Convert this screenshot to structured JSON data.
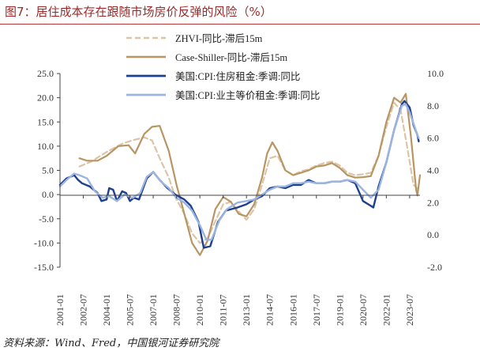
{
  "figure": {
    "title": "图7：居住成本存在跟随市场房价反弹的风险（%）",
    "source": "资料来源：Wind、Fred，中国银河证券研究院"
  },
  "colors": {
    "title": "#9a2a2a",
    "zhvi": "#dcc4a6",
    "case_shiller": "#b89663",
    "cpi_shelter": "#1d3f8f",
    "cpi_oer": "#9bb4e0"
  },
  "chart_data": {
    "type": "line",
    "title": "",
    "xlabel": "",
    "ylabel": "",
    "xlim": [
      "2001-01",
      "2024-03"
    ],
    "x_tick_labels": [
      "2001-01",
      "2002-07",
      "2004-01",
      "2005-07",
      "2007-01",
      "2008-07",
      "2010-01",
      "2011-07",
      "2013-01",
      "2014-07",
      "2016-01",
      "2017-07",
      "2019-01",
      "2020-07",
      "2022-01",
      "2023-07"
    ],
    "y_left": {
      "lim": [
        -15,
        25
      ],
      "ticks": [
        "25.0",
        "20.0",
        "15.0",
        "10.0",
        "5.0",
        "0.0",
        "-5.0",
        "-10.0",
        "-15.0"
      ]
    },
    "y_right": {
      "lim": [
        -2,
        10
      ],
      "ticks": [
        "10.0",
        "8.0",
        "6.0",
        "4.0",
        "2.0",
        "0.0",
        "-2.0"
      ]
    },
    "grid": false,
    "legend": "top-center",
    "series": [
      {
        "name": "ZHVI-同比-滞后15m",
        "axis": "left",
        "style": "dashed",
        "points": [
          [
            "2002-04",
            5.8
          ],
          [
            "2003-01",
            6.8
          ],
          [
            "2004-01",
            8.8
          ],
          [
            "2005-01",
            10.5
          ],
          [
            "2005-09",
            11.2
          ],
          [
            "2006-06",
            11.8
          ],
          [
            "2006-12",
            11.2
          ],
          [
            "2007-06",
            7.5
          ],
          [
            "2008-01",
            3.5
          ],
          [
            "2008-06",
            -0.5
          ],
          [
            "2009-01",
            -4.0
          ],
          [
            "2009-07",
            -8.0
          ],
          [
            "2010-01",
            -10.0
          ],
          [
            "2010-07",
            -9.0
          ],
          [
            "2011-01",
            -5.5
          ],
          [
            "2011-07",
            -2.0
          ],
          [
            "2012-01",
            -1.5
          ],
          [
            "2012-07",
            -3.5
          ],
          [
            "2013-01",
            -5.2
          ],
          [
            "2013-07",
            -3.0
          ],
          [
            "2014-01",
            2.0
          ],
          [
            "2014-07",
            7.5
          ],
          [
            "2015-01",
            8.0
          ],
          [
            "2015-07",
            5.0
          ],
          [
            "2016-01",
            4.0
          ],
          [
            "2016-07",
            4.8
          ],
          [
            "2017-01",
            5.2
          ],
          [
            "2017-07",
            6.0
          ],
          [
            "2018-01",
            6.5
          ],
          [
            "2018-07",
            6.8
          ],
          [
            "2019-01",
            6.0
          ],
          [
            "2019-07",
            4.5
          ],
          [
            "2020-01",
            4.0
          ],
          [
            "2020-07",
            4.2
          ],
          [
            "2021-01",
            4.5
          ],
          [
            "2021-07",
            8.0
          ],
          [
            "2022-01",
            14.0
          ],
          [
            "2022-07",
            19.0
          ],
          [
            "2022-12",
            17.5
          ],
          [
            "2023-05",
            10.0
          ],
          [
            "2023-10",
            2.0
          ],
          [
            "2024-02",
            1.0
          ]
        ]
      },
      {
        "name": "Case-Shiller-同比-滞后15m",
        "axis": "left",
        "style": "solid",
        "points": [
          [
            "2002-04",
            7.5
          ],
          [
            "2002-10",
            7.0
          ],
          [
            "2003-06",
            7.0
          ],
          [
            "2004-01",
            8.0
          ],
          [
            "2004-10",
            10.0
          ],
          [
            "2005-06",
            10.2
          ],
          [
            "2005-11",
            8.5
          ],
          [
            "2006-06",
            12.5
          ],
          [
            "2006-12",
            14.0
          ],
          [
            "2007-06",
            14.2
          ],
          [
            "2008-01",
            9.0
          ],
          [
            "2008-07",
            2.0
          ],
          [
            "2009-01",
            -4.0
          ],
          [
            "2009-07",
            -10.0
          ],
          [
            "2010-01",
            -12.5
          ],
          [
            "2010-07",
            -9.5
          ],
          [
            "2011-01",
            -3.0
          ],
          [
            "2011-07",
            -0.5
          ],
          [
            "2012-01",
            -1.5
          ],
          [
            "2012-07",
            -4.0
          ],
          [
            "2013-01",
            -4.5
          ],
          [
            "2013-07",
            -2.0
          ],
          [
            "2014-01",
            3.5
          ],
          [
            "2014-05",
            8.5
          ],
          [
            "2014-09",
            10.8
          ],
          [
            "2015-01",
            9.0
          ],
          [
            "2015-07",
            5.0
          ],
          [
            "2016-01",
            4.0
          ],
          [
            "2016-07",
            4.5
          ],
          [
            "2017-01",
            5.0
          ],
          [
            "2017-07",
            5.8
          ],
          [
            "2018-01",
            6.0
          ],
          [
            "2018-07",
            6.5
          ],
          [
            "2019-01",
            5.5
          ],
          [
            "2019-07",
            4.0
          ],
          [
            "2020-01",
            3.5
          ],
          [
            "2020-07",
            3.6
          ],
          [
            "2021-01",
            3.8
          ],
          [
            "2021-07",
            8.0
          ],
          [
            "2022-01",
            15.0
          ],
          [
            "2022-07",
            20.0
          ],
          [
            "2022-12",
            19.0
          ],
          [
            "2023-04",
            20.8
          ],
          [
            "2023-08",
            12.0
          ],
          [
            "2023-12",
            1.0
          ],
          [
            "2024-01",
            -0.2
          ],
          [
            "2024-03",
            4.0
          ]
        ]
      },
      {
        "name": "美国:CPI:住房租金:季调:同比",
        "axis": "right",
        "style": "solid",
        "points": [
          [
            "2001-01",
            3.1
          ],
          [
            "2001-06",
            3.5
          ],
          [
            "2001-12",
            3.7
          ],
          [
            "2002-03",
            3.4
          ],
          [
            "2002-06",
            3.2
          ],
          [
            "2002-12",
            3.0
          ],
          [
            "2003-06",
            2.6
          ],
          [
            "2003-09",
            2.1
          ],
          [
            "2004-01",
            2.2
          ],
          [
            "2004-03",
            2.9
          ],
          [
            "2004-06",
            2.8
          ],
          [
            "2004-09",
            2.1
          ],
          [
            "2005-01",
            2.7
          ],
          [
            "2005-04",
            2.6
          ],
          [
            "2005-07",
            2.1
          ],
          [
            "2005-10",
            2.3
          ],
          [
            "2006-02",
            2.2
          ],
          [
            "2006-08",
            3.5
          ],
          [
            "2007-01",
            3.9
          ],
          [
            "2007-06",
            3.4
          ],
          [
            "2007-12",
            2.9
          ],
          [
            "2008-06",
            2.5
          ],
          [
            "2009-01",
            2.2
          ],
          [
            "2009-06",
            1.8
          ],
          [
            "2009-12",
            0.8
          ],
          [
            "2010-04",
            -0.8
          ],
          [
            "2010-09",
            -0.7
          ],
          [
            "2011-03",
            0.8
          ],
          [
            "2011-09",
            1.5
          ],
          [
            "2012-06",
            1.7
          ],
          [
            "2013-01",
            1.9
          ],
          [
            "2013-07",
            2.2
          ],
          [
            "2014-01",
            2.4
          ],
          [
            "2014-07",
            2.9
          ],
          [
            "2015-01",
            3.0
          ],
          [
            "2015-07",
            2.9
          ],
          [
            "2016-01",
            3.1
          ],
          [
            "2016-07",
            3.1
          ],
          [
            "2017-01",
            3.4
          ],
          [
            "2017-07",
            3.2
          ],
          [
            "2018-01",
            3.2
          ],
          [
            "2018-07",
            3.3
          ],
          [
            "2019-01",
            3.3
          ],
          [
            "2019-07",
            3.4
          ],
          [
            "2020-01",
            3.2
          ],
          [
            "2020-07",
            2.1
          ],
          [
            "2021-01",
            1.8
          ],
          [
            "2021-03",
            1.7
          ],
          [
            "2021-07",
            3.0
          ],
          [
            "2022-01",
            4.5
          ],
          [
            "2022-07",
            6.5
          ],
          [
            "2023-01",
            8.1
          ],
          [
            "2023-03",
            8.3
          ],
          [
            "2023-07",
            7.9
          ],
          [
            "2023-10",
            6.8
          ],
          [
            "2024-01",
            6.2
          ],
          [
            "2024-02",
            5.8
          ]
        ]
      },
      {
        "name": "美国:CPI:业主等价租金:季调:同比",
        "axis": "right",
        "style": "solid",
        "points": [
          [
            "2001-01",
            3.0
          ],
          [
            "2001-06",
            3.4
          ],
          [
            "2001-12",
            3.8
          ],
          [
            "2002-04",
            3.7
          ],
          [
            "2002-10",
            3.5
          ],
          [
            "2003-04",
            2.7
          ],
          [
            "2003-10",
            2.3
          ],
          [
            "2004-03",
            2.4
          ],
          [
            "2004-09",
            2.1
          ],
          [
            "2005-03",
            2.5
          ],
          [
            "2005-09",
            2.3
          ],
          [
            "2006-03",
            2.6
          ],
          [
            "2006-08",
            3.6
          ],
          [
            "2007-01",
            3.9
          ],
          [
            "2007-07",
            3.3
          ],
          [
            "2008-01",
            2.9
          ],
          [
            "2008-07",
            2.3
          ],
          [
            "2009-01",
            2.0
          ],
          [
            "2009-07",
            1.5
          ],
          [
            "2010-01",
            0.6
          ],
          [
            "2010-06",
            -0.3
          ],
          [
            "2010-10",
            -0.3
          ],
          [
            "2011-04",
            0.9
          ],
          [
            "2011-10",
            1.6
          ],
          [
            "2012-06",
            2.0
          ],
          [
            "2013-01",
            2.1
          ],
          [
            "2013-07",
            2.2
          ],
          [
            "2014-01",
            2.5
          ],
          [
            "2014-07",
            2.8
          ],
          [
            "2015-01",
            3.0
          ],
          [
            "2015-07",
            3.0
          ],
          [
            "2016-01",
            3.2
          ],
          [
            "2016-07",
            3.2
          ],
          [
            "2017-01",
            3.3
          ],
          [
            "2017-07",
            3.2
          ],
          [
            "2018-01",
            3.2
          ],
          [
            "2018-07",
            3.3
          ],
          [
            "2019-01",
            3.3
          ],
          [
            "2019-07",
            3.4
          ],
          [
            "2020-01",
            3.3
          ],
          [
            "2020-07",
            2.8
          ],
          [
            "2021-01",
            2.3
          ],
          [
            "2021-07",
            2.8
          ],
          [
            "2022-01",
            4.5
          ],
          [
            "2022-07",
            6.5
          ],
          [
            "2023-01",
            8.0
          ],
          [
            "2023-04",
            8.1
          ],
          [
            "2023-07",
            7.6
          ],
          [
            "2023-10",
            6.9
          ],
          [
            "2024-01",
            6.2
          ],
          [
            "2024-02",
            6.0
          ]
        ]
      }
    ]
  }
}
